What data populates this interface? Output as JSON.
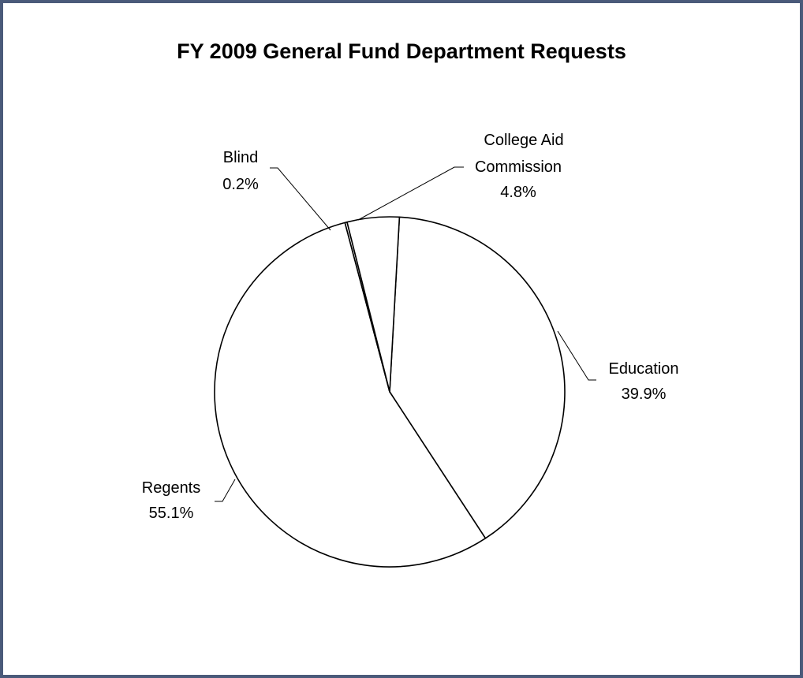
{
  "chart_data": {
    "type": "pie",
    "title": "FY 2009 General Fund Department Requests",
    "slices": [
      {
        "name": "Education",
        "value": 39.9,
        "label": "39.9%"
      },
      {
        "name": "Regents",
        "value": 55.1,
        "label": "55.1%"
      },
      {
        "name": "Blind",
        "value": 0.2,
        "label": "0.2%"
      },
      {
        "name": "College Aid Commission",
        "name_lines": [
          "College Aid",
          "Commission"
        ],
        "value": 4.8,
        "label": "4.8%"
      }
    ],
    "colors": {
      "slice_fill": "#ffffff",
      "slice_stroke": "#000000",
      "frame_border": "#4a5a7a"
    }
  }
}
